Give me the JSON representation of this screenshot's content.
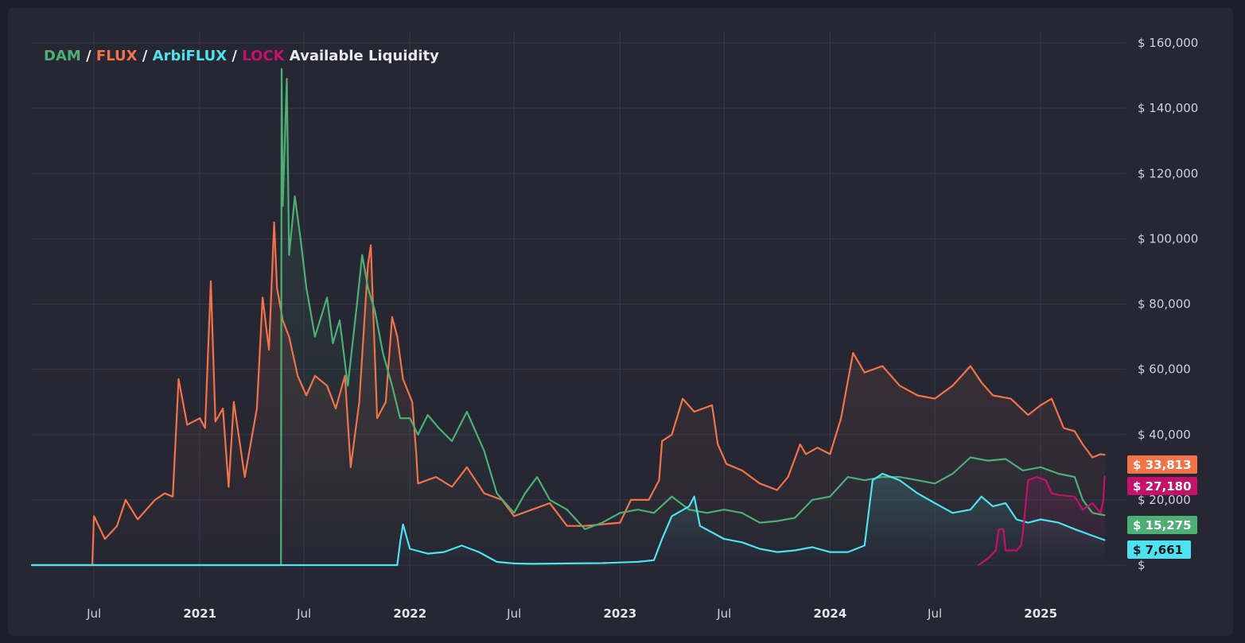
{
  "title": {
    "dam": "DAM",
    "sep1": " / ",
    "flux": "FLUX",
    "sep2": " / ",
    "arbiflux": "ArbiFLUX",
    "sep3": " / ",
    "lock": "LOCK",
    "rest": " Available Liquidity"
  },
  "colors": {
    "dam": "#4caf74",
    "flux": "#f0734a",
    "arbiflux": "#4de2ef",
    "lock": "#c4116a",
    "grid": "#353848",
    "background": "#262733"
  },
  "chart_data": {
    "type": "line",
    "title": "DAM / FLUX / ArbiFLUX / LOCK Available Liquidity",
    "y_range": [
      0,
      160000
    ],
    "y_ticks": [
      {
        "value": 0,
        "label": "$"
      },
      {
        "value": 20000,
        "label": "$ 20,000"
      },
      {
        "value": 40000,
        "label": "$ 40,000"
      },
      {
        "value": 60000,
        "label": "$ 60,000"
      },
      {
        "value": 80000,
        "label": "$ 80,000"
      },
      {
        "value": 100000,
        "label": "$ 100,000"
      },
      {
        "value": 120000,
        "label": "$ 120,000"
      },
      {
        "value": 140000,
        "label": "$ 140,000"
      },
      {
        "value": 160000,
        "label": "$ 160,000"
      }
    ],
    "x_range": [
      "2020-03-15",
      "2025-05-01"
    ],
    "x_ticks": [
      {
        "date": "2020-07-01",
        "label": "Jul",
        "major": false
      },
      {
        "date": "2021-01-01",
        "label": "2021",
        "major": true
      },
      {
        "date": "2021-07-01",
        "label": "Jul",
        "major": false
      },
      {
        "date": "2022-01-01",
        "label": "2022",
        "major": true
      },
      {
        "date": "2022-07-01",
        "label": "Jul",
        "major": false
      },
      {
        "date": "2023-01-01",
        "label": "2023",
        "major": true
      },
      {
        "date": "2023-07-01",
        "label": "Jul",
        "major": false
      },
      {
        "date": "2024-01-01",
        "label": "2024",
        "major": true
      },
      {
        "date": "2024-07-01",
        "label": "Jul",
        "major": false
      },
      {
        "date": "2025-01-01",
        "label": "2025",
        "major": true
      }
    ],
    "grid": true,
    "legend": "title",
    "series": [
      {
        "name": "FLUX",
        "color": "#f0734a",
        "last_value_label": "$ 33,813",
        "points": [
          [
            "2020-03-15",
            0
          ],
          [
            "2020-06-28",
            0
          ],
          [
            "2020-07-01",
            15000
          ],
          [
            "2020-07-20",
            8000
          ],
          [
            "2020-08-10",
            12000
          ],
          [
            "2020-08-25",
            20000
          ],
          [
            "2020-09-15",
            14000
          ],
          [
            "2020-10-15",
            20000
          ],
          [
            "2020-11-01",
            22000
          ],
          [
            "2020-11-15",
            21000
          ],
          [
            "2020-11-25",
            57000
          ],
          [
            "2020-12-10",
            43000
          ],
          [
            "2021-01-01",
            45000
          ],
          [
            "2021-01-10",
            42000
          ],
          [
            "2021-01-20",
            87000
          ],
          [
            "2021-01-28",
            44000
          ],
          [
            "2021-02-10",
            48000
          ],
          [
            "2021-02-20",
            24000
          ],
          [
            "2021-03-01",
            50000
          ],
          [
            "2021-03-20",
            27000
          ],
          [
            "2021-04-10",
            48000
          ],
          [
            "2021-04-20",
            82000
          ],
          [
            "2021-05-01",
            66000
          ],
          [
            "2021-05-10",
            105000
          ],
          [
            "2021-05-15",
            85000
          ],
          [
            "2021-05-25",
            75000
          ],
          [
            "2021-06-05",
            70000
          ],
          [
            "2021-06-20",
            58000
          ],
          [
            "2021-07-05",
            52000
          ],
          [
            "2021-07-20",
            58000
          ],
          [
            "2021-08-10",
            55000
          ],
          [
            "2021-08-25",
            48000
          ],
          [
            "2021-09-10",
            58000
          ],
          [
            "2021-09-20",
            30000
          ],
          [
            "2021-10-05",
            50000
          ],
          [
            "2021-10-20",
            92000
          ],
          [
            "2021-10-25",
            98000
          ],
          [
            "2021-11-05",
            45000
          ],
          [
            "2021-11-20",
            50000
          ],
          [
            "2021-12-01",
            76000
          ],
          [
            "2021-12-10",
            70000
          ],
          [
            "2021-12-20",
            57000
          ],
          [
            "2022-01-05",
            50000
          ],
          [
            "2022-01-12",
            34000
          ],
          [
            "2022-01-15",
            25000
          ],
          [
            "2022-02-15",
            27000
          ],
          [
            "2022-03-15",
            24000
          ],
          [
            "2022-04-10",
            30000
          ],
          [
            "2022-05-10",
            22000
          ],
          [
            "2022-06-10",
            20000
          ],
          [
            "2022-07-01",
            15000
          ],
          [
            "2022-08-01",
            17000
          ],
          [
            "2022-09-01",
            19000
          ],
          [
            "2022-10-01",
            12000
          ],
          [
            "2022-11-01",
            12000
          ],
          [
            "2022-12-01",
            12500
          ],
          [
            "2023-01-01",
            13000
          ],
          [
            "2023-01-20",
            20000
          ],
          [
            "2023-02-20",
            20000
          ],
          [
            "2023-03-10",
            26000
          ],
          [
            "2023-03-15",
            38000
          ],
          [
            "2023-04-01",
            40000
          ],
          [
            "2023-04-20",
            51000
          ],
          [
            "2023-05-10",
            47000
          ],
          [
            "2023-06-10",
            49000
          ],
          [
            "2023-06-20",
            37000
          ],
          [
            "2023-07-05",
            31000
          ],
          [
            "2023-08-01",
            29000
          ],
          [
            "2023-09-01",
            25000
          ],
          [
            "2023-10-01",
            23000
          ],
          [
            "2023-10-20",
            27000
          ],
          [
            "2023-11-10",
            37000
          ],
          [
            "2023-11-20",
            34000
          ],
          [
            "2023-12-10",
            36000
          ],
          [
            "2024-01-01",
            34000
          ],
          [
            "2024-01-20",
            45000
          ],
          [
            "2024-02-10",
            65000
          ],
          [
            "2024-03-01",
            59000
          ],
          [
            "2024-04-01",
            61000
          ],
          [
            "2024-05-01",
            55000
          ],
          [
            "2024-06-01",
            52000
          ],
          [
            "2024-07-01",
            51000
          ],
          [
            "2024-08-01",
            55000
          ],
          [
            "2024-09-01",
            61000
          ],
          [
            "2024-09-20",
            56000
          ],
          [
            "2024-10-10",
            52000
          ],
          [
            "2024-11-10",
            51000
          ],
          [
            "2024-12-10",
            46000
          ],
          [
            "2025-01-01",
            49000
          ],
          [
            "2025-01-20",
            51000
          ],
          [
            "2025-02-10",
            42000
          ],
          [
            "2025-03-01",
            41000
          ],
          [
            "2025-03-15",
            37000
          ],
          [
            "2025-04-01",
            33000
          ],
          [
            "2025-04-15",
            34000
          ],
          [
            "2025-04-22",
            33813
          ]
        ]
      },
      {
        "name": "DAM",
        "color": "#4caf74",
        "last_value_label": "$ 15,275",
        "points": [
          [
            "2020-03-15",
            0
          ],
          [
            "2021-05-22",
            0
          ],
          [
            "2021-05-23",
            152000
          ],
          [
            "2021-05-25",
            110000
          ],
          [
            "2021-06-01",
            149000
          ],
          [
            "2021-06-05",
            95000
          ],
          [
            "2021-06-15",
            113000
          ],
          [
            "2021-06-25",
            100000
          ],
          [
            "2021-07-05",
            85000
          ],
          [
            "2021-07-20",
            70000
          ],
          [
            "2021-08-10",
            82000
          ],
          [
            "2021-08-20",
            68000
          ],
          [
            "2021-09-01",
            75000
          ],
          [
            "2021-09-15",
            55000
          ],
          [
            "2021-10-01",
            80000
          ],
          [
            "2021-10-10",
            95000
          ],
          [
            "2021-10-20",
            85000
          ],
          [
            "2021-11-01",
            78000
          ],
          [
            "2021-11-15",
            65000
          ],
          [
            "2021-12-01",
            55000
          ],
          [
            "2021-12-15",
            45000
          ],
          [
            "2022-01-01",
            45000
          ],
          [
            "2022-01-15",
            40000
          ],
          [
            "2022-02-01",
            46000
          ],
          [
            "2022-02-20",
            42000
          ],
          [
            "2022-03-15",
            38000
          ],
          [
            "2022-04-10",
            47000
          ],
          [
            "2022-05-10",
            35000
          ],
          [
            "2022-06-01",
            22000
          ],
          [
            "2022-07-01",
            16000
          ],
          [
            "2022-07-20",
            22000
          ],
          [
            "2022-08-10",
            27000
          ],
          [
            "2022-09-01",
            20000
          ],
          [
            "2022-10-01",
            17000
          ],
          [
            "2022-11-01",
            11000
          ],
          [
            "2022-12-01",
            13000
          ],
          [
            "2023-01-01",
            16000
          ],
          [
            "2023-02-01",
            17000
          ],
          [
            "2023-03-01",
            16000
          ],
          [
            "2023-04-01",
            21000
          ],
          [
            "2023-05-01",
            17000
          ],
          [
            "2023-06-01",
            16000
          ],
          [
            "2023-07-01",
            17000
          ],
          [
            "2023-08-01",
            16000
          ],
          [
            "2023-09-01",
            13000
          ],
          [
            "2023-10-01",
            13500
          ],
          [
            "2023-11-01",
            14500
          ],
          [
            "2023-12-01",
            20000
          ],
          [
            "2024-01-01",
            21000
          ],
          [
            "2024-02-01",
            27000
          ],
          [
            "2024-03-01",
            26000
          ],
          [
            "2024-04-01",
            27000
          ],
          [
            "2024-05-01",
            27000
          ],
          [
            "2024-06-01",
            26000
          ],
          [
            "2024-07-01",
            25000
          ],
          [
            "2024-08-01",
            28000
          ],
          [
            "2024-09-01",
            33000
          ],
          [
            "2024-10-01",
            32000
          ],
          [
            "2024-11-01",
            32500
          ],
          [
            "2024-12-01",
            29000
          ],
          [
            "2025-01-01",
            30000
          ],
          [
            "2025-02-01",
            28000
          ],
          [
            "2025-03-01",
            27000
          ],
          [
            "2025-03-15",
            20000
          ],
          [
            "2025-04-01",
            16000
          ],
          [
            "2025-04-22",
            15275
          ]
        ]
      },
      {
        "name": "ArbiFLUX",
        "color": "#4de2ef",
        "last_value_label": "$ 7,661",
        "points": [
          [
            "2020-03-15",
            0
          ],
          [
            "2021-12-10",
            0
          ],
          [
            "2021-12-15",
            7000
          ],
          [
            "2021-12-20",
            12500
          ],
          [
            "2022-01-01",
            5000
          ],
          [
            "2022-02-01",
            3500
          ],
          [
            "2022-03-01",
            4000
          ],
          [
            "2022-04-01",
            6000
          ],
          [
            "2022-05-01",
            4000
          ],
          [
            "2022-06-01",
            1000
          ],
          [
            "2022-07-01",
            500
          ],
          [
            "2022-08-01",
            400
          ],
          [
            "2022-10-01",
            500
          ],
          [
            "2022-12-01",
            600
          ],
          [
            "2023-01-01",
            800
          ],
          [
            "2023-02-01",
            1000
          ],
          [
            "2023-03-01",
            1500
          ],
          [
            "2023-03-15",
            8000
          ],
          [
            "2023-04-01",
            15000
          ],
          [
            "2023-05-01",
            18000
          ],
          [
            "2023-05-10",
            21000
          ],
          [
            "2023-05-20",
            12000
          ],
          [
            "2023-06-10",
            10000
          ],
          [
            "2023-07-01",
            8000
          ],
          [
            "2023-08-01",
            7000
          ],
          [
            "2023-09-01",
            5000
          ],
          [
            "2023-10-01",
            4000
          ],
          [
            "2023-11-01",
            4500
          ],
          [
            "2023-12-01",
            5500
          ],
          [
            "2024-01-01",
            4000
          ],
          [
            "2024-02-01",
            4000
          ],
          [
            "2024-03-01",
            6000
          ],
          [
            "2024-03-15",
            26000
          ],
          [
            "2024-04-01",
            28000
          ],
          [
            "2024-05-01",
            26000
          ],
          [
            "2024-06-01",
            22000
          ],
          [
            "2024-07-01",
            19000
          ],
          [
            "2024-08-01",
            16000
          ],
          [
            "2024-09-01",
            17000
          ],
          [
            "2024-09-20",
            21000
          ],
          [
            "2024-10-10",
            18000
          ],
          [
            "2024-11-01",
            19000
          ],
          [
            "2024-11-20",
            14000
          ],
          [
            "2024-12-10",
            13000
          ],
          [
            "2025-01-01",
            14000
          ],
          [
            "2025-02-01",
            13000
          ],
          [
            "2025-03-01",
            11000
          ],
          [
            "2025-04-01",
            9000
          ],
          [
            "2025-04-22",
            7661
          ]
        ]
      },
      {
        "name": "LOCK",
        "color": "#c4116a",
        "last_value_label": "$ 27,180",
        "points": [
          [
            "2024-09-15",
            0
          ],
          [
            "2024-10-01",
            2000
          ],
          [
            "2024-10-15",
            4500
          ],
          [
            "2024-10-20",
            11000
          ],
          [
            "2024-10-28",
            11000
          ],
          [
            "2024-11-01",
            4500
          ],
          [
            "2024-11-20",
            4500
          ],
          [
            "2024-11-28",
            6000
          ],
          [
            "2024-12-01",
            10000
          ],
          [
            "2024-12-10",
            26000
          ],
          [
            "2024-12-25",
            27000
          ],
          [
            "2025-01-10",
            26000
          ],
          [
            "2025-01-20",
            22000
          ],
          [
            "2025-02-01",
            21500
          ],
          [
            "2025-03-01",
            21000
          ],
          [
            "2025-03-15",
            17000
          ],
          [
            "2025-04-01",
            19000
          ],
          [
            "2025-04-15",
            16000
          ],
          [
            "2025-04-20",
            20000
          ],
          [
            "2025-04-22",
            27180
          ]
        ]
      }
    ]
  }
}
